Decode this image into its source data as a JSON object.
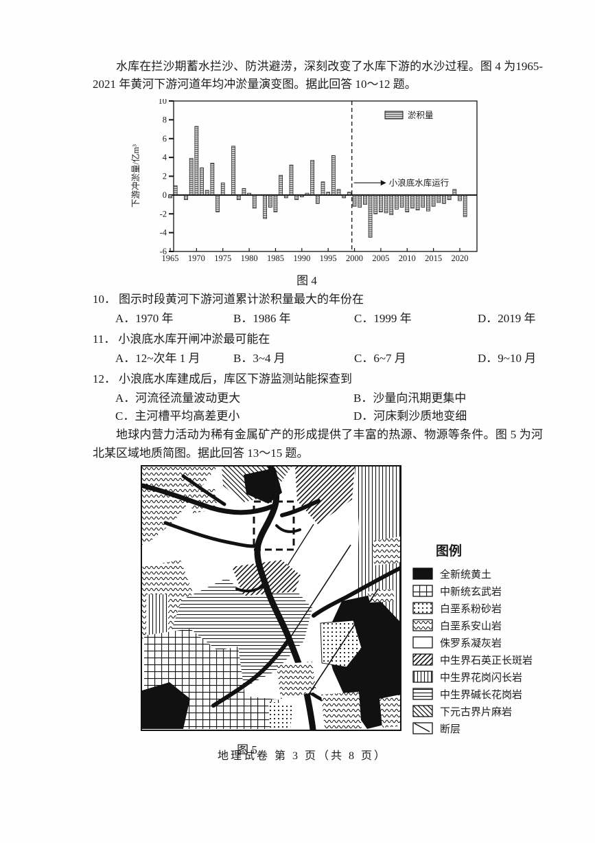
{
  "colors": {
    "ink": "#1b1b1b",
    "paper": "#fefefe",
    "bar_fill": "#cbcbcb"
  },
  "intro1": "水库在拦沙期蓄水拦沙、防洪避涝，深刻改变了水库下游的水沙过程。图 4 为1965-2021 年黄河下游河道年均冲淤量演变图。据此回答 10～12 题。",
  "fig4_caption": "图 4",
  "chart_data": {
    "type": "bar",
    "title": "图 4",
    "ylabel": "下游冲淤量/亿m³",
    "ylim": [
      -6,
      10
    ],
    "yticks": [
      10,
      8,
      6,
      4,
      2,
      0,
      -2,
      -4,
      -6
    ],
    "xtick_years": [
      1965,
      1970,
      1975,
      1980,
      1985,
      1990,
      1995,
      2000,
      2005,
      2010,
      2015,
      2020
    ],
    "legend_label": "淤积量",
    "legend_position": "top-right-inside",
    "grid": false,
    "annotation": {
      "label": "小浪底水库运行",
      "x": 1999.5,
      "y": 1.3
    },
    "years": [
      1965,
      1966,
      1967,
      1968,
      1969,
      1970,
      1971,
      1972,
      1973,
      1974,
      1975,
      1976,
      1977,
      1978,
      1979,
      1980,
      1981,
      1982,
      1983,
      1984,
      1985,
      1986,
      1987,
      1988,
      1989,
      1990,
      1991,
      1992,
      1993,
      1994,
      1995,
      1996,
      1997,
      1998,
      1999,
      2000,
      2001,
      2002,
      2003,
      2004,
      2005,
      2006,
      2007,
      2008,
      2009,
      2010,
      2011,
      2012,
      2013,
      2014,
      2015,
      2016,
      2017,
      2018,
      2019,
      2020,
      2021
    ],
    "values": [
      -0.3,
      1.0,
      0,
      -0.5,
      3.9,
      7.3,
      2.9,
      0.5,
      3.4,
      -1.8,
      1.3,
      0,
      5.2,
      -0.5,
      0.7,
      0.2,
      -1.4,
      0,
      -2.5,
      -1.3,
      -1.8,
      2.1,
      -0.3,
      3.2,
      -0.5,
      -0.2,
      0.2,
      3.7,
      -0.9,
      1.4,
      0.3,
      4.2,
      0.6,
      -0.3,
      0.3,
      -1.2,
      -1.3,
      -1.0,
      -4.5,
      -2.0,
      -1.8,
      -1.9,
      -2.1,
      -1.5,
      -1.3,
      -1.8,
      -1.4,
      -1.6,
      -1.3,
      -1.7,
      -1.2,
      -0.8,
      -0.9,
      -0.5,
      0.6,
      -0.6,
      -2.3
    ]
  },
  "questions": [
    {
      "num": "10．",
      "stem": "图示时段黄河下游河道累计淤积量最大的年份在",
      "options": [
        "A．1970 年",
        "B．1986 年",
        "C．1999 年",
        "D．2019 年"
      ]
    },
    {
      "num": "11．",
      "stem": "小浪底水库开闸冲淤最可能在",
      "options": [
        "A．12~次年 1 月",
        "B．3~4 月",
        "C．6~7 月",
        "D．9~10 月"
      ]
    },
    {
      "num": "12．",
      "stem": "小浪底水库建成后，库区下游监测站能探查到",
      "options": [
        "A．河流径流量波动更大",
        "B．沙量向汛期更集中",
        "C．主河槽平均高差更小",
        "D．河床剩沙质地变细"
      ]
    }
  ],
  "intro2": "地球内营力活动为稀有金属矿产的形成提供了丰富的热源、物源等条件。图 5 为河北某区域地质简图。据此回答 13～15 题。",
  "map": {
    "legend_title": "图例",
    "legend": [
      {
        "pattern": "solid",
        "label": "全新统黄土"
      },
      {
        "pattern": "grid",
        "label": "中新统玄武岩"
      },
      {
        "pattern": "dots",
        "label": "白垩系粉砂岩"
      },
      {
        "pattern": "waves",
        "label": "白垩系安山岩"
      },
      {
        "pattern": "blank",
        "label": "侏罗系凝灰岩"
      },
      {
        "pattern": "hatch-fwd",
        "label": "中生界石英正长斑岩"
      },
      {
        "pattern": "vlines",
        "label": "中生界花岗闪长岩"
      },
      {
        "pattern": "hlines",
        "label": "中生界碱长花岗岩"
      },
      {
        "pattern": "hatch-back",
        "label": "下元古界片麻岩"
      },
      {
        "pattern": "fault",
        "label": "断层"
      }
    ],
    "fig_caption": "图 5"
  },
  "footer": "地理试卷 第 3 页（共 8 页）"
}
